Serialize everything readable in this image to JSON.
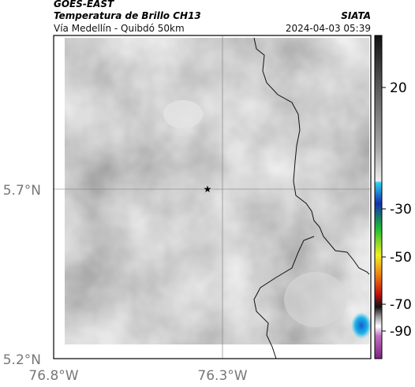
{
  "header": {
    "satellite": "GOES-EAST",
    "product": "Temperatura de Brillo CH13",
    "region": "Vía Medellín - Quibdó 50km",
    "source": "SIATA",
    "datetime": "2024-04-03 05:39"
  },
  "axes": {
    "y_labels": [
      "5.7°N",
      "5.2°N"
    ],
    "x_labels": [
      "76.8°W",
      "76.3°W"
    ]
  },
  "colorbar": {
    "ticks": [
      "20",
      "-30",
      "-50",
      "-70",
      "-90"
    ]
  }
}
